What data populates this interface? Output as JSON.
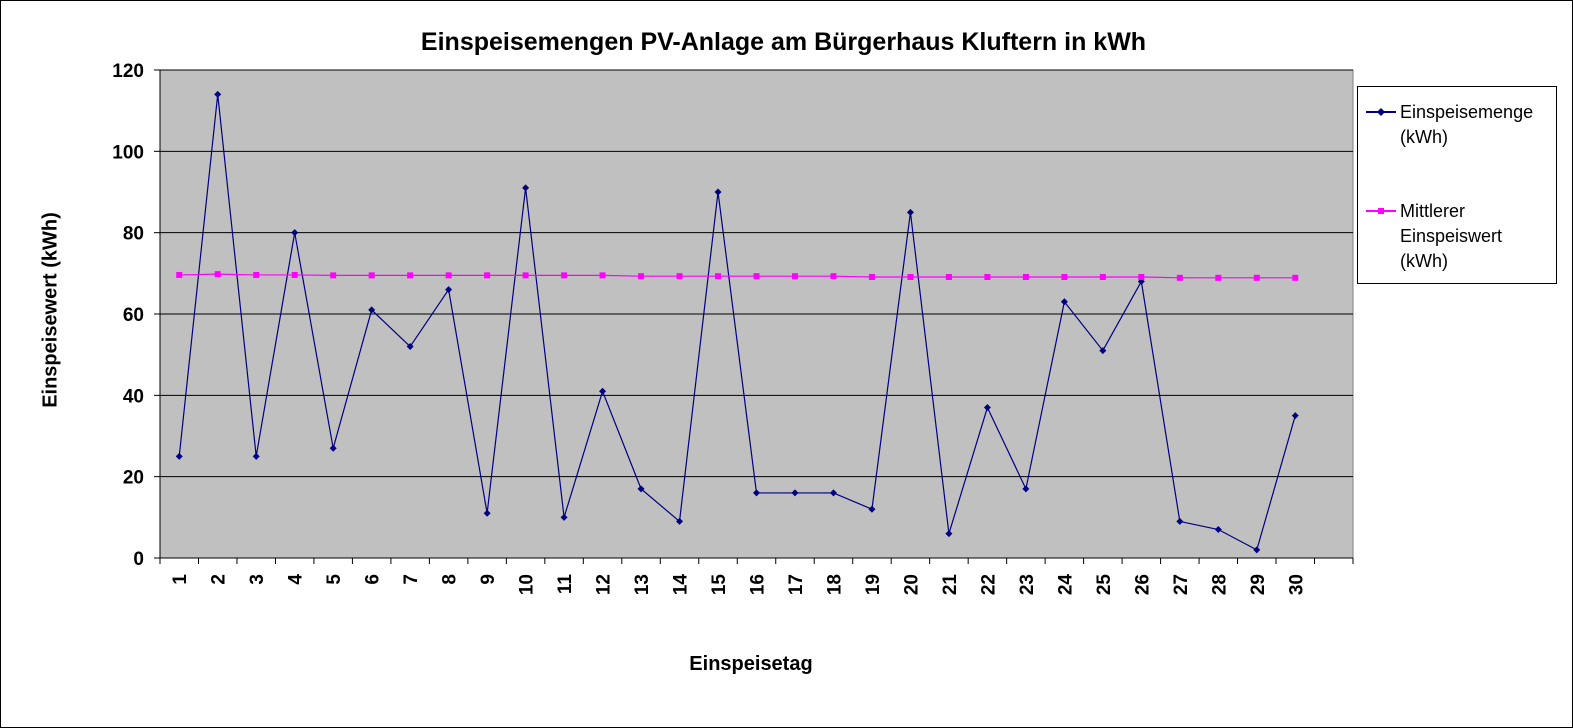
{
  "chart_data": {
    "type": "line",
    "title": "Einspeisemengen PV-Anlage am Bürgerhaus Kluftern in kWh",
    "xlabel": "Einspeisetag",
    "ylabel": "Einspeisewert (kWh)",
    "categories": [
      "1",
      "2",
      "3",
      "4",
      "5",
      "6",
      "7",
      "8",
      "9",
      "10",
      "11",
      "12",
      "13",
      "14",
      "15",
      "16",
      "17",
      "18",
      "19",
      "20",
      "21",
      "22",
      "23",
      "24",
      "25",
      "26",
      "27",
      "28",
      "29",
      "30"
    ],
    "ylim": [
      0,
      120
    ],
    "yticks": [
      "0",
      "20",
      "40",
      "60",
      "80",
      "100",
      "120"
    ],
    "grid": true,
    "legend_position": "right",
    "plot_background": "#c0c0c0",
    "series": [
      {
        "name": "Einspeisemenge\n(kWh)",
        "color": "#000080",
        "marker": "diamond",
        "values": [
          25,
          114,
          25,
          80,
          27,
          61,
          52,
          66,
          11,
          91,
          10,
          41,
          17,
          9,
          90,
          16,
          16,
          16,
          12,
          85,
          6,
          37,
          17,
          63,
          51,
          68,
          9,
          7,
          2,
          35
        ]
      },
      {
        "name": "Mittlerer\nEinspeiswert\n(kWh)",
        "color": "#ff00ff",
        "marker": "square",
        "values": [
          69.6,
          69.8,
          69.6,
          69.6,
          69.5,
          69.5,
          69.5,
          69.5,
          69.5,
          69.5,
          69.5,
          69.5,
          69.3,
          69.3,
          69.3,
          69.3,
          69.3,
          69.3,
          69.1,
          69.1,
          69.1,
          69.1,
          69.1,
          69.1,
          69.1,
          69.1,
          68.9,
          68.9,
          68.9,
          68.9
        ]
      }
    ]
  }
}
